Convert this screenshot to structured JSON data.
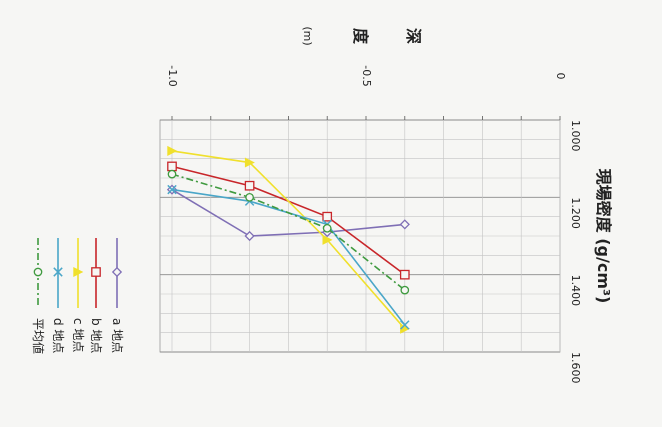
{
  "chart_data": {
    "type": "line",
    "title": "",
    "xlabel": "現場密度 (g/cm³)",
    "ylabel": "深 度 (m)",
    "xlim": [
      1.0,
      1.6
    ],
    "ylim": [
      -1.0,
      0
    ],
    "x_ticks": [
      "1.000",
      "1.200",
      "1.400",
      "1.600"
    ],
    "y_ticks": [
      "-1.0",
      "-0.5",
      "0"
    ],
    "grid": true,
    "legend_position": "bottom-left",
    "rotation": "rotated 90° clockwise",
    "series": [
      {
        "name": "a 地点",
        "color": "#7f6fb5",
        "marker": "diamond",
        "points": [
          {
            "x": 1.18,
            "y": -1.0
          },
          {
            "x": 1.3,
            "y": -0.8
          },
          {
            "x": 1.29,
            "y": -0.6
          },
          {
            "x": 1.27,
            "y": -0.4
          }
        ]
      },
      {
        "name": "b 地点",
        "color": "#c8262a",
        "marker": "square",
        "points": [
          {
            "x": 1.12,
            "y": -1.0
          },
          {
            "x": 1.17,
            "y": -0.8
          },
          {
            "x": 1.25,
            "y": -0.6
          },
          {
            "x": 1.4,
            "y": -0.4
          }
        ]
      },
      {
        "name": "c 地点",
        "color": "#f0e02c",
        "marker": "triangle",
        "points": [
          {
            "x": 1.08,
            "y": -1.0
          },
          {
            "x": 1.11,
            "y": -0.8
          },
          {
            "x": 1.31,
            "y": -0.6
          },
          {
            "x": 1.54,
            "y": -0.4
          }
        ]
      },
      {
        "name": "d 地点",
        "color": "#4aa6c8",
        "marker": "x",
        "points": [
          {
            "x": 1.18,
            "y": -1.0
          },
          {
            "x": 1.21,
            "y": -0.8
          },
          {
            "x": 1.27,
            "y": -0.6
          },
          {
            "x": 1.53,
            "y": -0.4
          }
        ]
      },
      {
        "name": "平均値",
        "color": "#3f9a3f",
        "marker": "circle",
        "dash": "7,3,2,3",
        "points": [
          {
            "x": 1.14,
            "y": -1.0
          },
          {
            "x": 1.2,
            "y": -0.8
          },
          {
            "x": 1.28,
            "y": -0.6
          },
          {
            "x": 1.44,
            "y": -0.4
          }
        ]
      }
    ]
  }
}
